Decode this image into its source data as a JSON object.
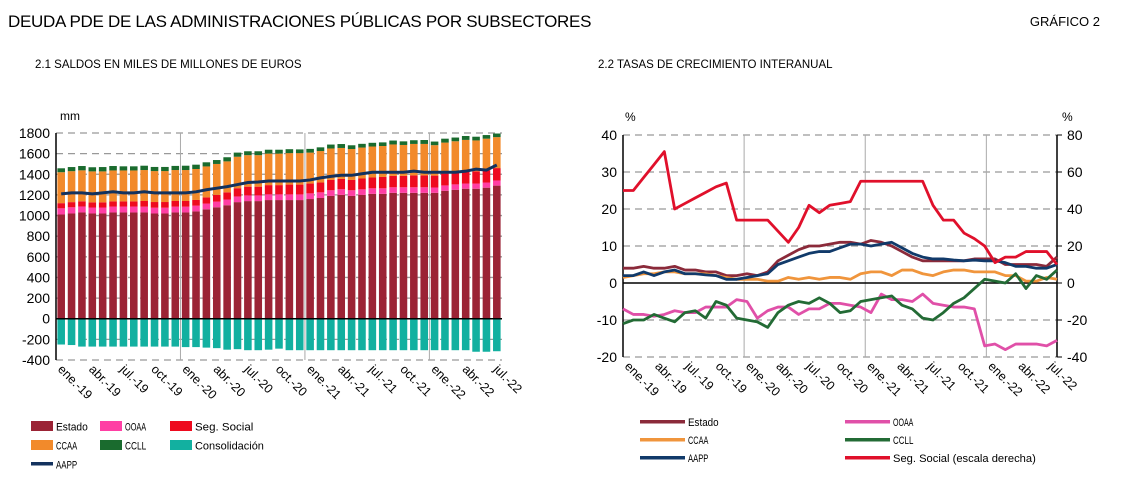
{
  "header": {
    "title": "DEUDA PDE DE LAS ADMINISTRACIONES  PÚBLICAS POR SUBSECTORES",
    "chart_number": "GRÁFICO 2"
  },
  "chart_data": [
    {
      "type": "bar",
      "stacked": true,
      "title": "2.1 SALDOS  EN MILES  DE MILLONES  DE EUROS",
      "ylabel": "mm",
      "ylim": [
        -400,
        1800
      ],
      "yticks": [
        -400,
        -200,
        0,
        200,
        400,
        600,
        800,
        1000,
        1200,
        1400,
        1600,
        1800
      ],
      "grid": true,
      "legend": "bottom",
      "x_tick_labels": [
        "ene.-19",
        "abr.-19",
        "jul.-19",
        "oct.-19",
        "ene.-20",
        "abr.-20",
        "jul.-20",
        "oct.-20",
        "ene.-21",
        "abr.-21",
        "jul.-21",
        "oct.-21",
        "ene.-22",
        "abr.-22",
        "jul.-22"
      ],
      "x_range": [
        "ene.-19",
        "jul.-22"
      ],
      "series": [
        {
          "name": "Estado",
          "kind": "bar",
          "color": "#9b2335",
          "values": [
            1010,
            1020,
            1030,
            1020,
            1020,
            1030,
            1030,
            1030,
            1030,
            1020,
            1020,
            1030,
            1030,
            1040,
            1060,
            1080,
            1100,
            1130,
            1140,
            1140,
            1150,
            1150,
            1150,
            1150,
            1160,
            1170,
            1190,
            1200,
            1190,
            1200,
            1210,
            1210,
            1220,
            1220,
            1220,
            1220,
            1220,
            1240,
            1250,
            1260,
            1260,
            1270,
            1290
          ]
        },
        {
          "name": "OOAA",
          "kind": "bar",
          "color": "#ff3fa4",
          "values": [
            60,
            60,
            58,
            58,
            58,
            57,
            57,
            57,
            56,
            56,
            56,
            56,
            56,
            56,
            56,
            55,
            55,
            55,
            55,
            55,
            55,
            55,
            55,
            55,
            55,
            55,
            55,
            55,
            55,
            54,
            54,
            54,
            54,
            54,
            54,
            54,
            52,
            52,
            52,
            50,
            50,
            50,
            50
          ]
        },
        {
          "name": "Seg. Social",
          "kind": "bar",
          "color": "#ee0a1e",
          "values": [
            50,
            50,
            50,
            50,
            50,
            50,
            50,
            50,
            55,
            55,
            55,
            55,
            55,
            55,
            60,
            65,
            70,
            80,
            85,
            85,
            90,
            90,
            95,
            95,
            95,
            95,
            100,
            100,
            100,
            105,
            105,
            110,
            110,
            110,
            115,
            115,
            115,
            115,
            118,
            118,
            118,
            120,
            120
          ]
        },
        {
          "name": "CCAA",
          "kind": "bar",
          "color": "#f28a2b",
          "values": [
            300,
            300,
            300,
            300,
            300,
            300,
            300,
            300,
            300,
            300,
            300,
            300,
            300,
            300,
            300,
            300,
            300,
            305,
            305,
            305,
            305,
            305,
            305,
            305,
            300,
            305,
            305,
            300,
            300,
            300,
            300,
            300,
            305,
            300,
            305,
            305,
            295,
            300,
            300,
            305,
            300,
            305,
            300
          ]
        },
        {
          "name": "CCLL",
          "kind": "bar",
          "color": "#1a6b2e",
          "values": [
            38,
            40,
            42,
            40,
            42,
            43,
            40,
            40,
            42,
            40,
            40,
            40,
            42,
            42,
            40,
            38,
            40,
            40,
            38,
            38,
            38,
            38,
            38,
            36,
            36,
            36,
            38,
            38,
            36,
            36,
            36,
            35,
            38,
            35,
            36,
            38,
            35,
            38,
            36,
            38,
            36,
            35,
            35
          ]
        },
        {
          "name": "Consolidación",
          "kind": "bar",
          "color": "#12b0a0",
          "values": [
            -250,
            -255,
            -270,
            -270,
            -270,
            -270,
            -270,
            -270,
            -270,
            -270,
            -270,
            -270,
            -275,
            -275,
            -280,
            -285,
            -300,
            -295,
            -305,
            -305,
            -300,
            -290,
            -305,
            -305,
            -305,
            -305,
            -305,
            -305,
            -305,
            -305,
            -305,
            -305,
            -305,
            -305,
            -305,
            -305,
            -305,
            -305,
            -305,
            -305,
            -320,
            -320,
            -315
          ]
        },
        {
          "name": "AAPP",
          "kind": "line",
          "color": "#13325e",
          "values": [
            1210,
            1220,
            1220,
            1210,
            1220,
            1230,
            1220,
            1220,
            1230,
            1220,
            1220,
            1220,
            1220,
            1230,
            1250,
            1265,
            1280,
            1300,
            1320,
            1325,
            1335,
            1335,
            1335,
            1335,
            1345,
            1365,
            1380,
            1390,
            1390,
            1405,
            1420,
            1420,
            1420,
            1420,
            1430,
            1420,
            1420,
            1420,
            1420,
            1430,
            1450,
            1440,
            1490
          ]
        }
      ]
    },
    {
      "type": "line",
      "title": "2.2 TASAS  DE CRECIMIENTO INTERANUAL",
      "ylabel": "%",
      "y2label": "%",
      "ylim": [
        -20,
        40
      ],
      "y2lim": [
        -40,
        80
      ],
      "yticks": [
        -20,
        -10,
        0,
        10,
        20,
        30,
        40
      ],
      "y2ticks": [
        -40,
        -20,
        0,
        20,
        40,
        60,
        80
      ],
      "grid": true,
      "legend": "bottom",
      "x_tick_labels": [
        "ene.-19",
        "abr.-19",
        "jul.-19",
        "oct.-19",
        "ene.-20",
        "abr.-20",
        "jul.-20",
        "oct.-20",
        "ene.-21",
        "abr.-21",
        "jul.-21",
        "oct.-21",
        "ene.-22",
        "abr.-22",
        "jul.-22"
      ],
      "series": [
        {
          "name": "Estado",
          "axis": "left",
          "color": "#8b2a3a",
          "values": [
            4,
            4,
            4.5,
            4,
            4,
            4.5,
            3.5,
            3.5,
            3,
            3,
            2,
            2,
            2.5,
            2,
            3,
            6,
            7.5,
            9,
            10,
            10,
            10.5,
            11,
            11,
            10.5,
            11.5,
            11,
            10,
            8.5,
            7,
            6,
            6,
            6,
            6,
            6,
            6.5,
            6.5,
            6.5,
            5,
            5,
            5,
            5,
            4.5,
            7
          ]
        },
        {
          "name": "OOAA",
          "axis": "left",
          "color": "#e050a8",
          "values": [
            -7,
            -8.5,
            -8.5,
            -9,
            -8.5,
            -7.5,
            -8,
            -8,
            -6.5,
            -6.5,
            -6.5,
            -4.5,
            -5,
            -9.5,
            -7.5,
            -6.5,
            -6.5,
            -8.5,
            -7,
            -7,
            -5.5,
            -5.5,
            -6,
            -6.5,
            -8,
            -3,
            -4.5,
            -4.5,
            -5,
            -3,
            -5.5,
            -6,
            -6.5,
            -6.5,
            -7,
            -17,
            -16.5,
            -18,
            -16.5,
            -16.5,
            -16.5,
            -17,
            -15.5
          ]
        },
        {
          "name": "CCAA",
          "axis": "left",
          "color": "#f0953c",
          "values": [
            1.5,
            2,
            2.5,
            2.5,
            3,
            3,
            2.5,
            2.5,
            2.5,
            2,
            1.5,
            1,
            1,
            1,
            0.5,
            0.5,
            1.5,
            1,
            1.5,
            1,
            1.5,
            1.5,
            1,
            2.5,
            3,
            3,
            2,
            3.5,
            3.5,
            2.5,
            2,
            3,
            3.5,
            3.5,
            3,
            3,
            3,
            2,
            2,
            0.5,
            0.5,
            1.5,
            1
          ]
        },
        {
          "name": "CCLL",
          "axis": "left",
          "color": "#236b35",
          "values": [
            -11,
            -10,
            -10,
            -8.5,
            -9.5,
            -10.5,
            -8,
            -7.5,
            -9.5,
            -5,
            -6,
            -9.5,
            -10,
            -10.5,
            -12,
            -8,
            -6,
            -5,
            -5.5,
            -4,
            -5.5,
            -8,
            -7.5,
            -5,
            -4.5,
            -4,
            -3.5,
            -6,
            -7,
            -9.5,
            -10,
            -8,
            -5.5,
            -4,
            -1.5,
            1,
            0.5,
            0,
            2.5,
            -1.5,
            2,
            1,
            3.5
          ]
        },
        {
          "name": "AAPP",
          "axis": "left",
          "color": "#113a6a",
          "values": [
            2,
            2,
            3,
            2,
            3,
            3.5,
            2.5,
            2.5,
            2.2,
            2,
            1,
            1,
            1.5,
            2,
            2.5,
            5,
            6,
            7,
            8,
            8.5,
            8.5,
            9.5,
            10.5,
            10.5,
            10,
            10.5,
            11,
            9.5,
            8,
            7,
            6.5,
            6.5,
            6.2,
            6,
            6.2,
            6,
            6,
            5.5,
            4.5,
            4.5,
            4,
            4,
            5
          ]
        },
        {
          "name": "Seg. Social (escala derecha)",
          "axis": "right",
          "color": "#e0102b",
          "values": [
            50,
            50,
            57,
            64,
            71,
            40,
            43,
            46,
            49,
            52,
            54,
            34,
            34,
            34,
            34,
            28,
            22,
            30,
            42,
            38,
            42,
            43,
            44,
            55,
            55,
            55,
            55,
            55,
            55,
            55,
            42,
            34,
            34,
            27,
            24,
            20,
            11,
            14,
            14,
            17,
            17,
            17,
            10
          ]
        }
      ]
    }
  ]
}
